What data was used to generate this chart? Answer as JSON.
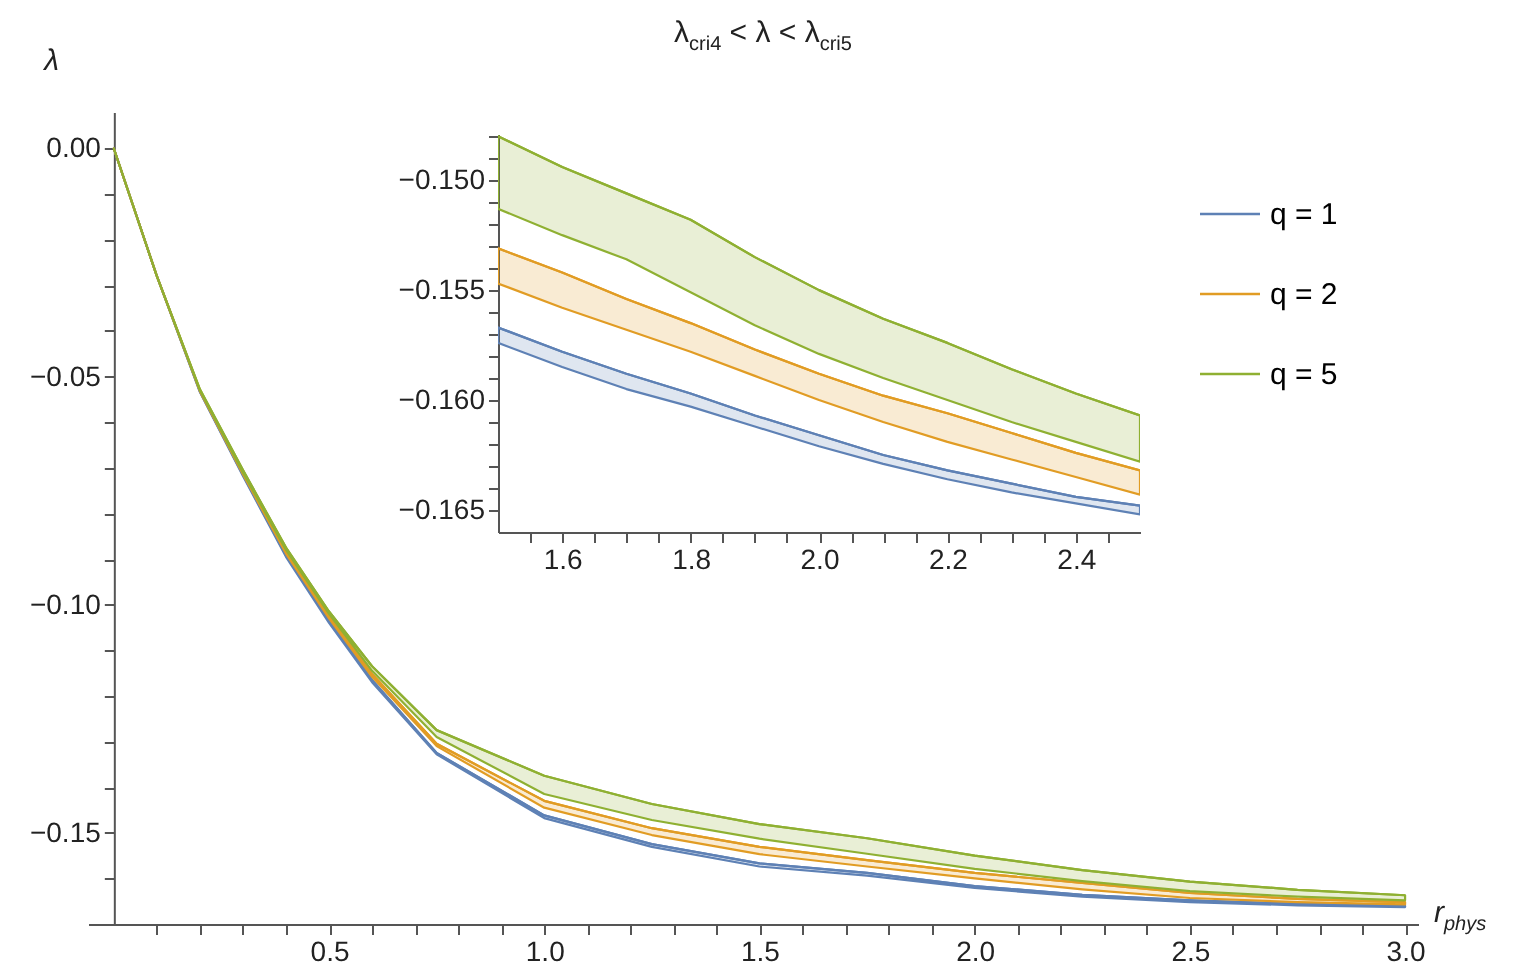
{
  "chart_data": [
    {
      "type": "line",
      "title": "λ$_{cri4}$ < λ < λ$_{cri5}$",
      "xlabel": "r$_{phys}$",
      "ylabel": "λ",
      "legend": "top right",
      "xlim": [
        -0.06,
        3.03
      ],
      "ylim": [
        -0.17,
        0.008
      ],
      "xticks": [
        {
          "value": 0.1,
          "label": null
        },
        {
          "value": 0.2,
          "label": null
        },
        {
          "value": 0.3,
          "label": null
        },
        {
          "value": 0.4,
          "label": null
        },
        0.5,
        {
          "value": 0.6,
          "label": null
        },
        {
          "value": 0.7,
          "label": null
        },
        {
          "value": 0.8,
          "label": null
        },
        {
          "value": 0.9,
          "label": null
        },
        {
          "value": 1,
          "label": "1.0"
        },
        {
          "value": 1.1,
          "label": null
        },
        {
          "value": 1.2,
          "label": null
        },
        {
          "value": 1.3,
          "label": null
        },
        {
          "value": 1.4,
          "label": null
        },
        1.5,
        {
          "value": 1.6,
          "label": null
        },
        {
          "value": 1.7,
          "label": null
        },
        {
          "value": 1.8,
          "label": null
        },
        {
          "value": 1.9,
          "label": null
        },
        {
          "value": 2,
          "label": "2.0"
        },
        {
          "value": 2.1,
          "label": null
        },
        {
          "value": 2.2,
          "label": null
        },
        {
          "value": 2.3,
          "label": null
        },
        {
          "value": 2.4,
          "label": null
        },
        2.5,
        {
          "value": 2.6,
          "label": null
        },
        {
          "value": 2.7,
          "label": null
        },
        {
          "value": 2.8,
          "label": null
        },
        {
          "value": 2.9,
          "label": null
        },
        {
          "value": 3,
          "label": "3.0"
        }
      ],
      "yticks": [
        {
          "value": 0,
          "label": "0.00"
        },
        {
          "value": -0.01,
          "label": null
        },
        {
          "value": -0.02,
          "label": null
        },
        {
          "value": -0.03,
          "label": null
        },
        {
          "value": -0.04,
          "label": null
        },
        {
          "value": -0.05,
          "label": "−0.05"
        },
        {
          "value": -0.06,
          "label": null
        },
        {
          "value": -0.07,
          "label": null
        },
        {
          "value": -0.08,
          "label": null
        },
        {
          "value": -0.09,
          "label": null
        },
        {
          "value": -0.1,
          "label": "−0.10"
        },
        {
          "value": -0.11,
          "label": null
        },
        {
          "value": -0.12,
          "label": null
        },
        {
          "value": -0.13,
          "label": null
        },
        {
          "value": -0.14,
          "label": null
        },
        {
          "value": -0.15,
          "label": "−0.15"
        },
        {
          "value": -0.16,
          "label": null
        }
      ],
      "x": [
        0,
        0.1,
        0.2,
        0.3,
        0.4,
        0.5,
        0.6,
        0.75,
        1.0,
        1.25,
        1.5,
        1.75,
        2.0,
        2.25,
        2.5,
        2.75,
        3.0
      ],
      "series": [
        {
          "name": "q = 1",
          "color": "#5e81b5",
          "values": [
            0,
            -0.028,
            -0.0533,
            -0.0716,
            -0.0892,
            -0.1035,
            -0.1165,
            -0.1325,
            -0.1462,
            -0.1525,
            -0.1567,
            -0.1588,
            -0.1617,
            -0.1636,
            -0.1648,
            -0.1656,
            -0.166
          ],
          "upper": [
            0,
            -0.028,
            -0.0533,
            -0.0716,
            -0.0892,
            -0.1035,
            -0.1165,
            -0.1325,
            -0.1462,
            -0.1525,
            -0.1567,
            -0.1588,
            -0.1617,
            -0.1636,
            -0.1648,
            -0.1656,
            -0.166
          ],
          "lower": [
            0,
            -0.028,
            -0.0534,
            -0.0718,
            -0.0895,
            -0.104,
            -0.117,
            -0.1328,
            -0.1468,
            -0.1531,
            -0.1574,
            -0.1594,
            -0.1621,
            -0.164,
            -0.1652,
            -0.1659,
            -0.1663
          ]
        },
        {
          "name": "q = 2",
          "color": "#e19c24",
          "values": [
            0,
            -0.028,
            -0.0531,
            -0.0712,
            -0.0885,
            -0.1025,
            -0.1152,
            -0.1305,
            -0.143,
            -0.149,
            -0.1531,
            -0.156,
            -0.1588,
            -0.161,
            -0.1632,
            -0.1645,
            -0.1652
          ],
          "upper": [
            0,
            -0.028,
            -0.0531,
            -0.0712,
            -0.0885,
            -0.1025,
            -0.1152,
            -0.1305,
            -0.143,
            -0.149,
            -0.1531,
            -0.156,
            -0.1588,
            -0.161,
            -0.1632,
            -0.1645,
            -0.1652
          ],
          "lower": [
            0,
            -0.028,
            -0.0532,
            -0.0714,
            -0.0888,
            -0.103,
            -0.1158,
            -0.131,
            -0.1445,
            -0.1505,
            -0.1547,
            -0.1574,
            -0.16,
            -0.1624,
            -0.1643,
            -0.1652,
            -0.1657
          ]
        },
        {
          "name": "q = 5",
          "color": "#8fb032",
          "values": [
            0,
            -0.028,
            -0.0528,
            -0.0705,
            -0.0875,
            -0.1015,
            -0.1135,
            -0.1275,
            -0.1375,
            -0.1437,
            -0.1481,
            -0.1512,
            -0.155,
            -0.1582,
            -0.1607,
            -0.1625,
            -0.1637
          ],
          "upper": [
            0,
            -0.028,
            -0.0528,
            -0.0705,
            -0.0875,
            -0.1015,
            -0.1135,
            -0.1275,
            -0.1375,
            -0.1437,
            -0.1481,
            -0.1512,
            -0.155,
            -0.1582,
            -0.1607,
            -0.1625,
            -0.1637
          ],
          "lower": [
            0,
            -0.028,
            -0.053,
            -0.071,
            -0.088,
            -0.102,
            -0.1145,
            -0.129,
            -0.1415,
            -0.1472,
            -0.1513,
            -0.1546,
            -0.1579,
            -0.1606,
            -0.1628,
            -0.164,
            -0.1648
          ]
        }
      ]
    },
    {
      "type": "line",
      "xlim": [
        1.5,
        2.5
      ],
      "ylim": [
        -0.166,
        -0.1479
      ],
      "xticks": [
        {
          "value": 1.55,
          "label": null
        },
        1.6,
        {
          "value": 1.65,
          "label": null
        },
        {
          "value": 1.7,
          "label": null
        },
        {
          "value": 1.75,
          "label": null
        },
        1.8,
        {
          "value": 1.85,
          "label": null
        },
        {
          "value": 1.9,
          "label": null
        },
        {
          "value": 1.95,
          "label": null
        },
        {
          "value": 2,
          "label": "2.0"
        },
        {
          "value": 2.05,
          "label": null
        },
        {
          "value": 2.1,
          "label": null
        },
        {
          "value": 2.15,
          "label": null
        },
        2.2,
        {
          "value": 2.25,
          "label": null
        },
        {
          "value": 2.3,
          "label": null
        },
        {
          "value": 2.35,
          "label": null
        },
        2.4,
        {
          "value": 2.45,
          "label": null
        }
      ],
      "yticks": [
        {
          "value": -0.148,
          "label": null
        },
        {
          "value": -0.149,
          "label": null
        },
        {
          "value": -0.15,
          "label": "−0.150"
        },
        {
          "value": -0.151,
          "label": null
        },
        {
          "value": -0.152,
          "label": null
        },
        {
          "value": -0.153,
          "label": null
        },
        {
          "value": -0.154,
          "label": null
        },
        {
          "value": -0.155,
          "label": "−0.155"
        },
        {
          "value": -0.156,
          "label": null
        },
        {
          "value": -0.157,
          "label": null
        },
        {
          "value": -0.158,
          "label": null
        },
        {
          "value": -0.159,
          "label": null
        },
        {
          "value": -0.16,
          "label": "−0.160"
        },
        {
          "value": -0.161,
          "label": null
        },
        {
          "value": -0.162,
          "label": null
        },
        {
          "value": -0.163,
          "label": null
        },
        {
          "value": -0.164,
          "label": null
        },
        {
          "value": -0.165,
          "label": "−0.165"
        }
      ],
      "x": [
        1.5,
        1.6,
        1.7,
        1.8,
        1.9,
        2.0,
        2.1,
        2.2,
        2.3,
        2.4,
        2.5
      ],
      "series": [
        {
          "color": "#5e81b5",
          "values": [
            -0.1567,
            -0.1578,
            -0.1588,
            -0.1597,
            -0.1607,
            -0.1616,
            -0.1625,
            -0.1632,
            -0.1638,
            -0.1644,
            -0.1648
          ],
          "upper": [
            -0.1567,
            -0.1578,
            -0.1588,
            -0.1597,
            -0.1607,
            -0.1616,
            -0.1625,
            -0.1632,
            -0.1638,
            -0.1644,
            -0.1648
          ],
          "lower": [
            -0.1574,
            -0.1585,
            -0.1595,
            -0.1603,
            -0.1612,
            -0.1621,
            -0.1629,
            -0.1636,
            -0.1642,
            -0.1647,
            -0.1652
          ]
        },
        {
          "color": "#e19c24",
          "values": [
            -0.1531,
            -0.1542,
            -0.1554,
            -0.1565,
            -0.1577,
            -0.1588,
            -0.1598,
            -0.1606,
            -0.1615,
            -0.1624,
            -0.1632
          ],
          "upper": [
            -0.1531,
            -0.1542,
            -0.1554,
            -0.1565,
            -0.1577,
            -0.1588,
            -0.1598,
            -0.1606,
            -0.1615,
            -0.1624,
            -0.1632
          ],
          "lower": [
            -0.1547,
            -0.1558,
            -0.1568,
            -0.1578,
            -0.1589,
            -0.16,
            -0.161,
            -0.1619,
            -0.1627,
            -0.1635,
            -0.1643
          ]
        },
        {
          "color": "#8fb032",
          "values": [
            -0.148,
            -0.1494,
            -0.1506,
            -0.1518,
            -0.1535,
            -0.155,
            -0.1563,
            -0.1574,
            -0.1586,
            -0.1597,
            -0.1607
          ],
          "upper": [
            -0.148,
            -0.1494,
            -0.1506,
            -0.1518,
            -0.1535,
            -0.155,
            -0.1563,
            -0.1574,
            -0.1586,
            -0.1597,
            -0.1607
          ],
          "lower": [
            -0.1513,
            -0.1525,
            -0.1536,
            -0.1551,
            -0.1566,
            -0.1579,
            -0.159,
            -0.16,
            -0.161,
            -0.1619,
            -0.1628
          ]
        }
      ]
    }
  ]
}
